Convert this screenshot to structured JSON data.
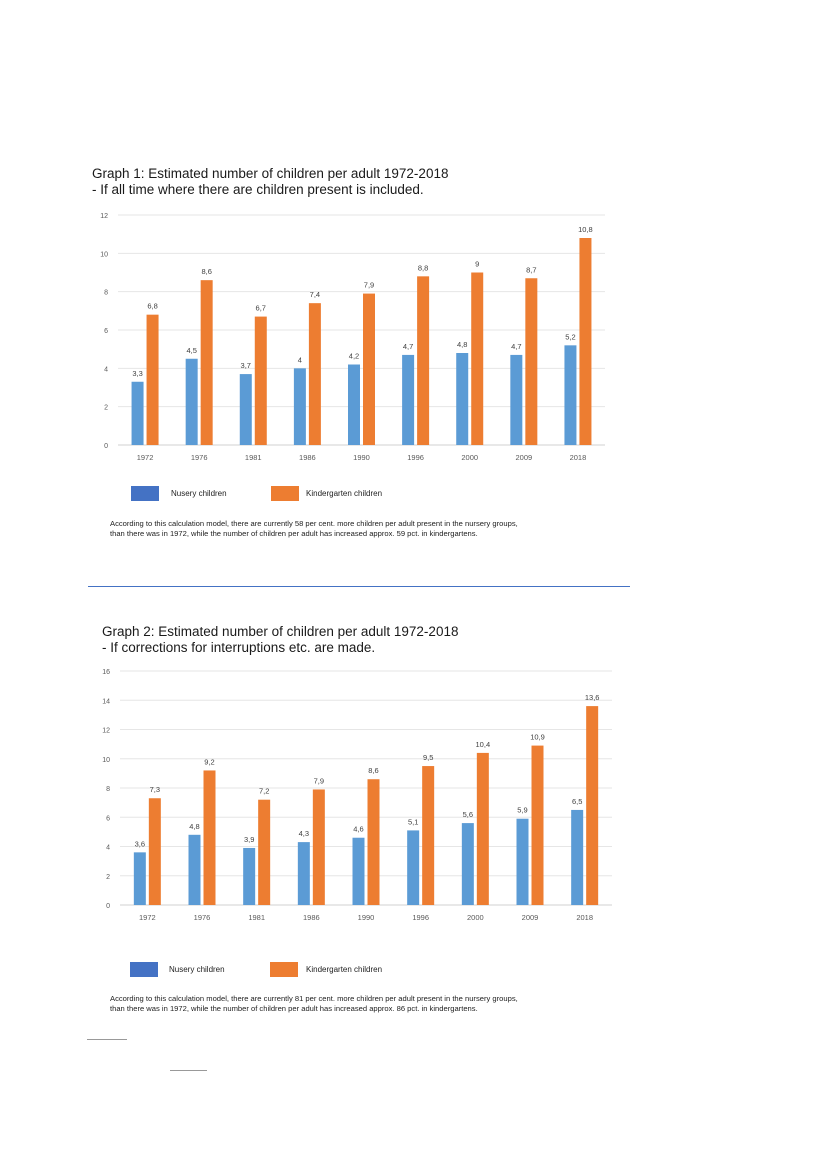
{
  "chart_data": [
    {
      "type": "bar",
      "title": "Graph 1: Estimated number of children per adult 1972-2018",
      "subtitle": "- If all time where there are children present is included.",
      "categories": [
        "1972",
        "1976",
        "1981",
        "1986",
        "1990",
        "1996",
        "2000",
        "2009",
        "2018"
      ],
      "series": [
        {
          "name": "Nusery children",
          "color": "#5b9bd5",
          "values": [
            3.3,
            4.5,
            3.7,
            4,
            4.2,
            4.7,
            4.8,
            4.7,
            5.2
          ],
          "labels": [
            "3,3",
            "4,5",
            "3,7",
            "4",
            "4,2",
            "4,7",
            "4,8",
            "4,7",
            "5,2"
          ]
        },
        {
          "name": "Kindergarten children",
          "color": "#ed7d31",
          "values": [
            6.8,
            8.6,
            6.7,
            7.4,
            7.9,
            8.8,
            9,
            8.7,
            10.8
          ],
          "labels": [
            "6,8",
            "8,6",
            "6,7",
            "7,4",
            "7,9",
            "8,8",
            "9",
            "8,7",
            "10,8"
          ]
        }
      ],
      "yticks": [
        "0",
        "2",
        "4",
        "6",
        "8",
        "10",
        "12"
      ],
      "ylim": [
        0,
        12
      ],
      "xlabel": "",
      "ylabel": "",
      "grid": true,
      "legend": {
        "placement": "bottom",
        "items": [
          {
            "label": "Nusery children",
            "color": "#4472c4"
          },
          {
            "label": "Kindergarten children",
            "color": "#ed7d31"
          }
        ]
      },
      "note": [
        "According to this calculation model, there are currently 58 per cent. more children per adult present in the nursery groups,",
        "than there was in 1972, while the number of children per adult has increased approx. 59 pct. in kindergartens."
      ]
    },
    {
      "type": "bar",
      "title": "Graph 2: Estimated number of children per adult 1972-2018",
      "subtitle": "- If corrections for interruptions etc. are made.",
      "categories": [
        "1972",
        "1976",
        "1981",
        "1986",
        "1990",
        "1996",
        "2000",
        "2009",
        "2018"
      ],
      "series": [
        {
          "name": "Nusery children",
          "color": "#5b9bd5",
          "values": [
            3.6,
            4.8,
            3.9,
            4.3,
            4.6,
            5.1,
            5.6,
            5.9,
            6.5
          ],
          "labels": [
            "3,6",
            "4,8",
            "3,9",
            "4,3",
            "4,6",
            "5,1",
            "5,6",
            "5,9",
            "6,5"
          ]
        },
        {
          "name": "Kindergarten children",
          "color": "#ed7d31",
          "values": [
            7.3,
            9.2,
            7.2,
            7.9,
            8.6,
            9.5,
            10.4,
            10.9,
            13.6
          ],
          "labels": [
            "7,3",
            "9,2",
            "7,2",
            "7,9",
            "8,6",
            "9,5",
            "10,4",
            "10,9",
            "13,6"
          ]
        }
      ],
      "yticks": [
        "0",
        "2",
        "4",
        "6",
        "8",
        "10",
        "12",
        "14",
        "16"
      ],
      "ylim": [
        0,
        16
      ],
      "xlabel": "",
      "ylabel": "",
      "grid": true,
      "legend": {
        "placement": "bottom",
        "items": [
          {
            "label": "Nusery children",
            "color": "#4472c4"
          },
          {
            "label": "Kindergarten children",
            "color": "#ed7d31"
          }
        ]
      },
      "note": [
        "According to this calculation model, there are currently 81 per cent. more children per adult present in the nursery groups,",
        "than there was in 1972, while the number of children per adult has increased approx. 86 pct. in kindergartens."
      ]
    }
  ]
}
